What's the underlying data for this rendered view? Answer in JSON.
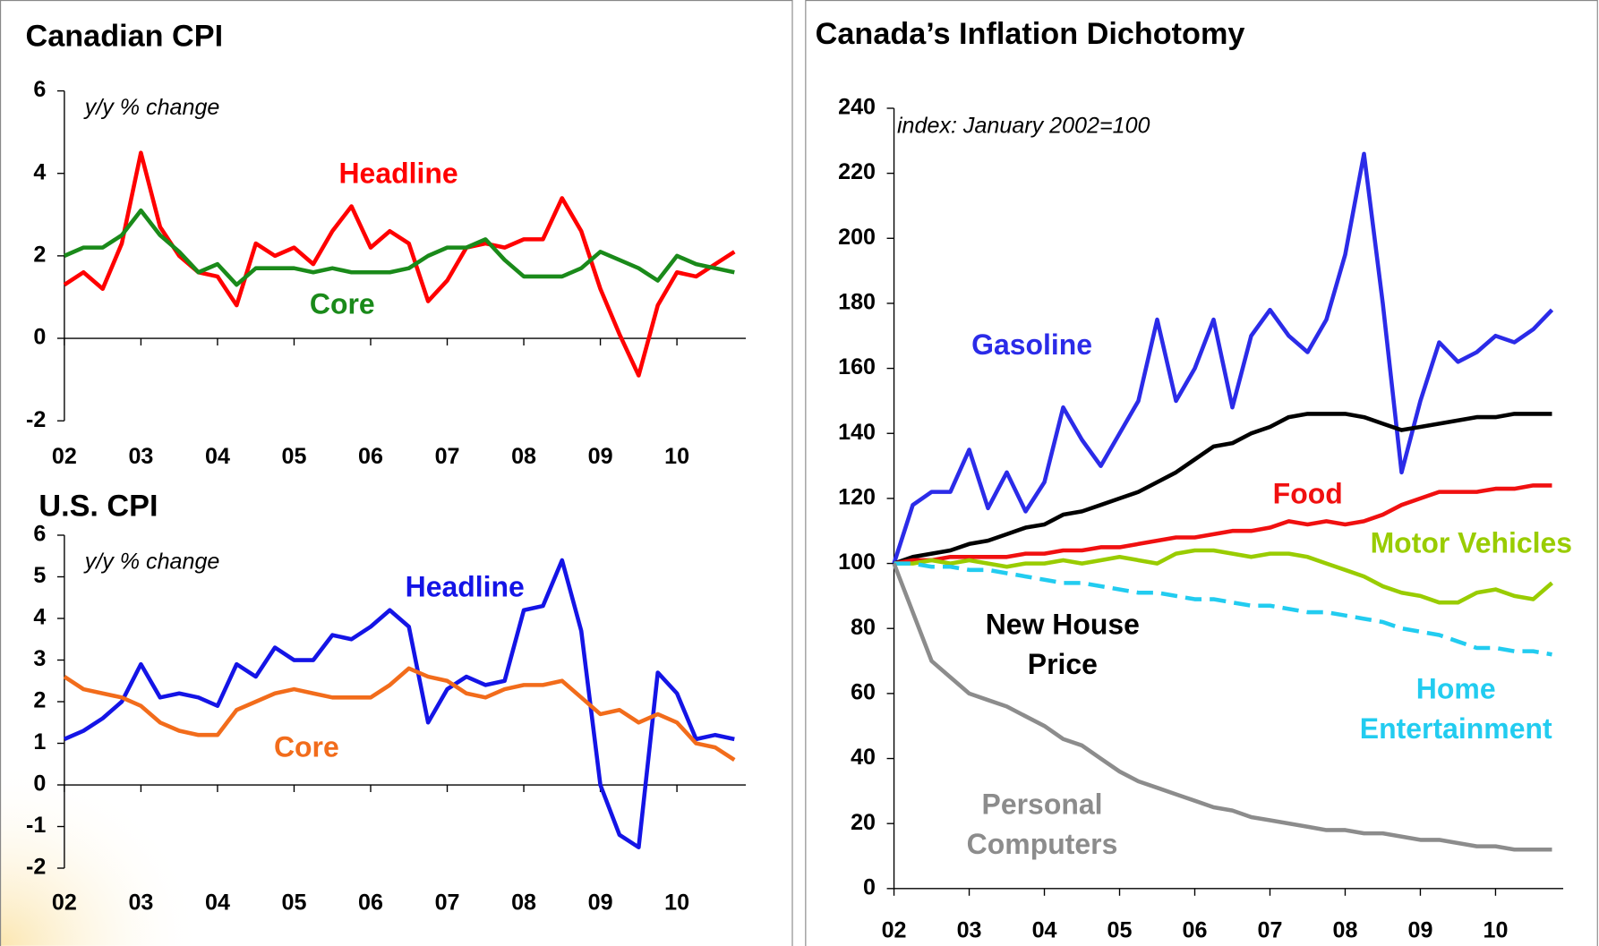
{
  "chart_data": [
    {
      "type": "line",
      "title": "Canadian CPI",
      "subtitle": "y/y % change",
      "x": [
        2002,
        2002.25,
        2002.5,
        2002.75,
        2003,
        2003.25,
        2003.5,
        2003.75,
        2004,
        2004.25,
        2004.5,
        2004.75,
        2005,
        2005.25,
        2005.5,
        2005.75,
        2006,
        2006.25,
        2006.5,
        2006.75,
        2007,
        2007.25,
        2007.5,
        2007.75,
        2008,
        2008.25,
        2008.5,
        2008.75,
        2009,
        2009.25,
        2009.5,
        2009.75,
        2010,
        2010.25,
        2010.5,
        2010.75
      ],
      "xlim": [
        2002,
        2010.9
      ],
      "xticks": [
        {
          "value": 2002,
          "label": "02"
        },
        {
          "value": 2003,
          "label": "03"
        },
        {
          "value": 2004,
          "label": "04"
        },
        {
          "value": 2005,
          "label": "05"
        },
        {
          "value": 2006,
          "label": "06"
        },
        {
          "value": 2007,
          "label": "07"
        },
        {
          "value": 2008,
          "label": "08"
        },
        {
          "value": 2009,
          "label": "09"
        },
        {
          "value": 2010,
          "label": "10"
        }
      ],
      "ylim": [
        -2,
        6
      ],
      "yticks": [
        -2,
        0,
        2,
        4,
        6
      ],
      "series": [
        {
          "name": "Headline",
          "color": "#ff0000",
          "values": [
            1.3,
            1.6,
            1.2,
            2.3,
            4.5,
            2.7,
            2.0,
            1.6,
            1.5,
            0.8,
            2.3,
            2.0,
            2.2,
            1.8,
            2.6,
            3.2,
            2.2,
            2.6,
            2.3,
            0.9,
            1.4,
            2.2,
            2.3,
            2.2,
            2.4,
            2.4,
            3.4,
            2.6,
            1.2,
            0.1,
            -0.9,
            0.8,
            1.6,
            1.5,
            1.8,
            2.1
          ]
        },
        {
          "name": "Core",
          "color": "#1a8a1a",
          "values": [
            2.0,
            2.2,
            2.2,
            2.5,
            3.1,
            2.5,
            2.1,
            1.6,
            1.8,
            1.3,
            1.7,
            1.7,
            1.7,
            1.6,
            1.7,
            1.6,
            1.6,
            1.6,
            1.7,
            2.0,
            2.2,
            2.2,
            2.4,
            1.9,
            1.5,
            1.5,
            1.5,
            1.7,
            2.1,
            1.9,
            1.7,
            1.4,
            2.0,
            1.8,
            1.7,
            1.6
          ]
        }
      ]
    },
    {
      "type": "line",
      "title": "U.S. CPI",
      "subtitle": "y/y % change",
      "x": [
        2002,
        2002.25,
        2002.5,
        2002.75,
        2003,
        2003.25,
        2003.5,
        2003.75,
        2004,
        2004.25,
        2004.5,
        2004.75,
        2005,
        2005.25,
        2005.5,
        2005.75,
        2006,
        2006.25,
        2006.5,
        2006.75,
        2007,
        2007.25,
        2007.5,
        2007.75,
        2008,
        2008.25,
        2008.5,
        2008.75,
        2009,
        2009.25,
        2009.5,
        2009.75,
        2010,
        2010.25,
        2010.5,
        2010.75
      ],
      "xlim": [
        2002,
        2010.9
      ],
      "xticks": [
        {
          "value": 2002,
          "label": "02"
        },
        {
          "value": 2003,
          "label": "03"
        },
        {
          "value": 2004,
          "label": "04"
        },
        {
          "value": 2005,
          "label": "05"
        },
        {
          "value": 2006,
          "label": "06"
        },
        {
          "value": 2007,
          "label": "07"
        },
        {
          "value": 2008,
          "label": "08"
        },
        {
          "value": 2009,
          "label": "09"
        },
        {
          "value": 2010,
          "label": "10"
        }
      ],
      "ylim": [
        -2,
        6
      ],
      "yticks": [
        -2,
        -1,
        0,
        1,
        2,
        3,
        4,
        5,
        6
      ],
      "series": [
        {
          "name": "Headline",
          "color": "#1414e6",
          "values": [
            1.1,
            1.3,
            1.6,
            2.0,
            2.9,
            2.1,
            2.2,
            2.1,
            1.9,
            2.9,
            2.6,
            3.3,
            3.0,
            3.0,
            3.6,
            3.5,
            3.8,
            4.2,
            3.8,
            1.5,
            2.3,
            2.6,
            2.4,
            2.5,
            4.2,
            4.3,
            5.4,
            3.7,
            0.0,
            -1.2,
            -1.5,
            2.7,
            2.2,
            1.1,
            1.2,
            1.1
          ]
        },
        {
          "name": "Core",
          "color": "#f26c1b",
          "values": [
            2.6,
            2.3,
            2.2,
            2.1,
            1.9,
            1.5,
            1.3,
            1.2,
            1.2,
            1.8,
            2.0,
            2.2,
            2.3,
            2.2,
            2.1,
            2.1,
            2.1,
            2.4,
            2.8,
            2.6,
            2.5,
            2.2,
            2.1,
            2.3,
            2.4,
            2.4,
            2.5,
            2.1,
            1.7,
            1.8,
            1.5,
            1.7,
            1.5,
            1.0,
            0.9,
            0.6
          ]
        }
      ]
    },
    {
      "type": "line",
      "title": "Canada’s Inflation Dichotomy",
      "subtitle": "index: January 2002=100",
      "x": [
        2002,
        2002.25,
        2002.5,
        2002.75,
        2003,
        2003.25,
        2003.5,
        2003.75,
        2004,
        2004.25,
        2004.5,
        2004.75,
        2005,
        2005.25,
        2005.5,
        2005.75,
        2006,
        2006.25,
        2006.5,
        2006.75,
        2007,
        2007.25,
        2007.5,
        2007.75,
        2008,
        2008.25,
        2008.5,
        2008.75,
        2009,
        2009.25,
        2009.5,
        2009.75,
        2010,
        2010.25,
        2010.5,
        2010.75
      ],
      "xlim": [
        2002,
        2010.9
      ],
      "xticks": [
        {
          "value": 2002,
          "label": "02"
        },
        {
          "value": 2003,
          "label": "03"
        },
        {
          "value": 2004,
          "label": "04"
        },
        {
          "value": 2005,
          "label": "05"
        },
        {
          "value": 2006,
          "label": "06"
        },
        {
          "value": 2007,
          "label": "07"
        },
        {
          "value": 2008,
          "label": "08"
        },
        {
          "value": 2009,
          "label": "09"
        },
        {
          "value": 2010,
          "label": "10"
        }
      ],
      "ylim": [
        0,
        240
      ],
      "yticks": [
        0,
        20,
        40,
        60,
        80,
        100,
        120,
        140,
        160,
        180,
        200,
        220,
        240
      ],
      "series": [
        {
          "name": "Gasoline",
          "color": "#2b2be8",
          "values": [
            100,
            118,
            122,
            122,
            135,
            117,
            128,
            116,
            125,
            148,
            138,
            130,
            140,
            150,
            175,
            150,
            160,
            175,
            148,
            170,
            178,
            170,
            165,
            175,
            195,
            226,
            180,
            128,
            150,
            168,
            162,
            165,
            170,
            168,
            172,
            178
          ]
        },
        {
          "name": "New House Price",
          "color": "#000000",
          "values": [
            100,
            102,
            103,
            104,
            106,
            107,
            109,
            111,
            112,
            115,
            116,
            118,
            120,
            122,
            125,
            128,
            132,
            136,
            137,
            140,
            142,
            145,
            146,
            146,
            146,
            145,
            143,
            141,
            142,
            143,
            144,
            145,
            145,
            146,
            146,
            146
          ]
        },
        {
          "name": "Food",
          "color": "#f01010",
          "values": [
            100,
            101,
            101,
            102,
            102,
            102,
            102,
            103,
            103,
            104,
            104,
            105,
            105,
            106,
            107,
            108,
            108,
            109,
            110,
            110,
            111,
            113,
            112,
            113,
            112,
            113,
            115,
            118,
            120,
            122,
            122,
            122,
            123,
            123,
            124,
            124
          ]
        },
        {
          "name": "Motor Vehicles",
          "color": "#99cc00",
          "values": [
            100,
            100,
            101,
            100,
            101,
            100,
            99,
            100,
            100,
            101,
            100,
            101,
            102,
            101,
            100,
            103,
            104,
            104,
            103,
            102,
            103,
            103,
            102,
            100,
            98,
            96,
            93,
            91,
            90,
            88,
            88,
            91,
            92,
            90,
            89,
            94
          ]
        },
        {
          "name": "Home Entertainment",
          "color": "#22ccf0",
          "dash": true,
          "values": [
            100,
            100,
            99,
            99,
            98,
            98,
            97,
            96,
            95,
            94,
            94,
            93,
            92,
            91,
            91,
            90,
            89,
            89,
            88,
            87,
            87,
            86,
            85,
            85,
            84,
            83,
            82,
            80,
            79,
            78,
            76,
            74,
            74,
            73,
            73,
            72
          ]
        },
        {
          "name": "Personal Computers",
          "color": "#8c8c8c",
          "values": [
            100,
            85,
            70,
            65,
            60,
            58,
            56,
            53,
            50,
            46,
            44,
            40,
            36,
            33,
            31,
            29,
            27,
            25,
            24,
            22,
            21,
            20,
            19,
            18,
            18,
            17,
            17,
            16,
            15,
            15,
            14,
            13,
            13,
            12,
            12,
            12
          ]
        }
      ]
    }
  ]
}
